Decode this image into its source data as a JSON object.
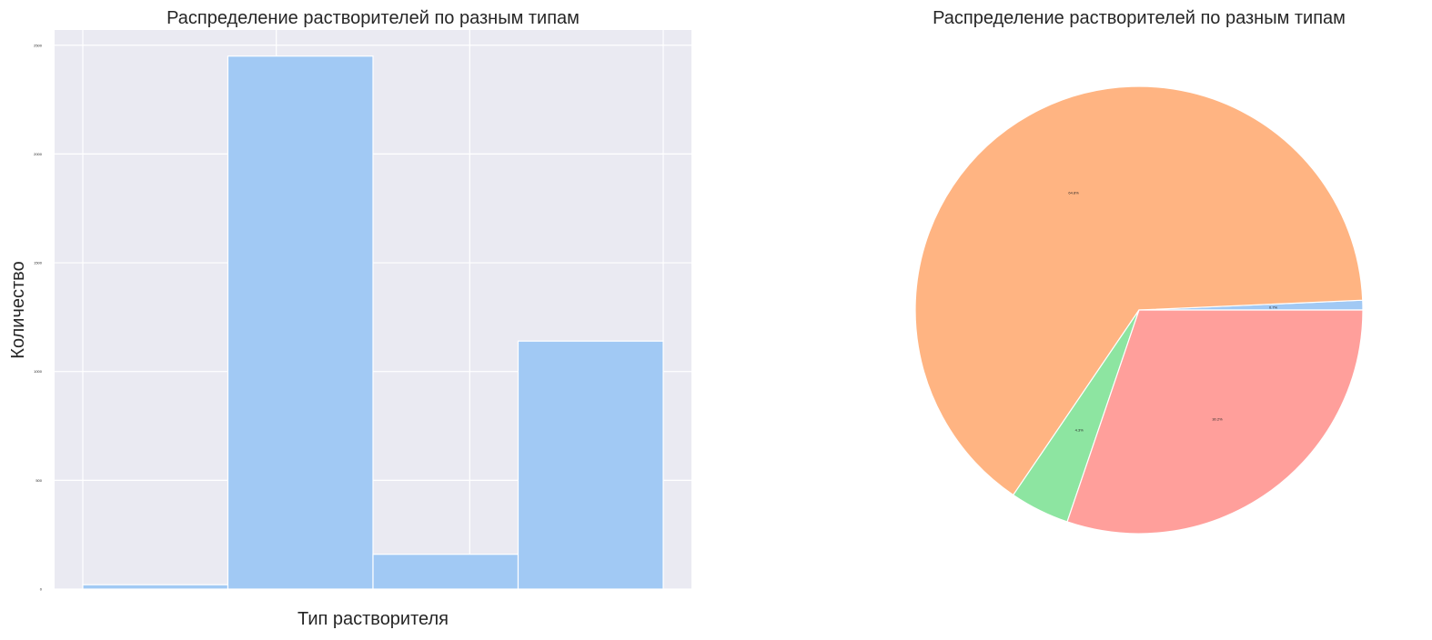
{
  "chart_data": [
    {
      "type": "bar",
      "title": "Распределение растворителей по разным типам",
      "xlabel": "Тип растворителя",
      "ylabel": "Количество",
      "categories": [
        "",
        "",
        "",
        ""
      ],
      "values": [
        20,
        2450,
        160,
        1140
      ],
      "xticks": [
        "",
        "",
        "",
        ""
      ],
      "yticks": [
        0,
        500,
        1000,
        1500,
        2000,
        2500
      ],
      "ylim": [
        0,
        2570
      ],
      "grid": true,
      "background": "#eaeaf2",
      "bar_color": "#a1c9f4",
      "legend": "none"
    },
    {
      "type": "pie",
      "title": "Распределение растворителей по разным типам",
      "slices": [
        {
          "label": "",
          "value": 0.7,
          "pct_text": "0.7%",
          "color": "#a1c9f4"
        },
        {
          "label": "",
          "value": 64.8,
          "pct_text": "64.8%",
          "color": "#ffb482"
        },
        {
          "label": "",
          "value": 4.3,
          "pct_text": "4.3%",
          "color": "#8de5a1"
        },
        {
          "label": "",
          "value": 30.2,
          "pct_text": "30.2%",
          "color": "#ff9f9b"
        }
      ],
      "start_angle_deg": 0,
      "direction": "counterclockwise",
      "legend": "none"
    }
  ]
}
